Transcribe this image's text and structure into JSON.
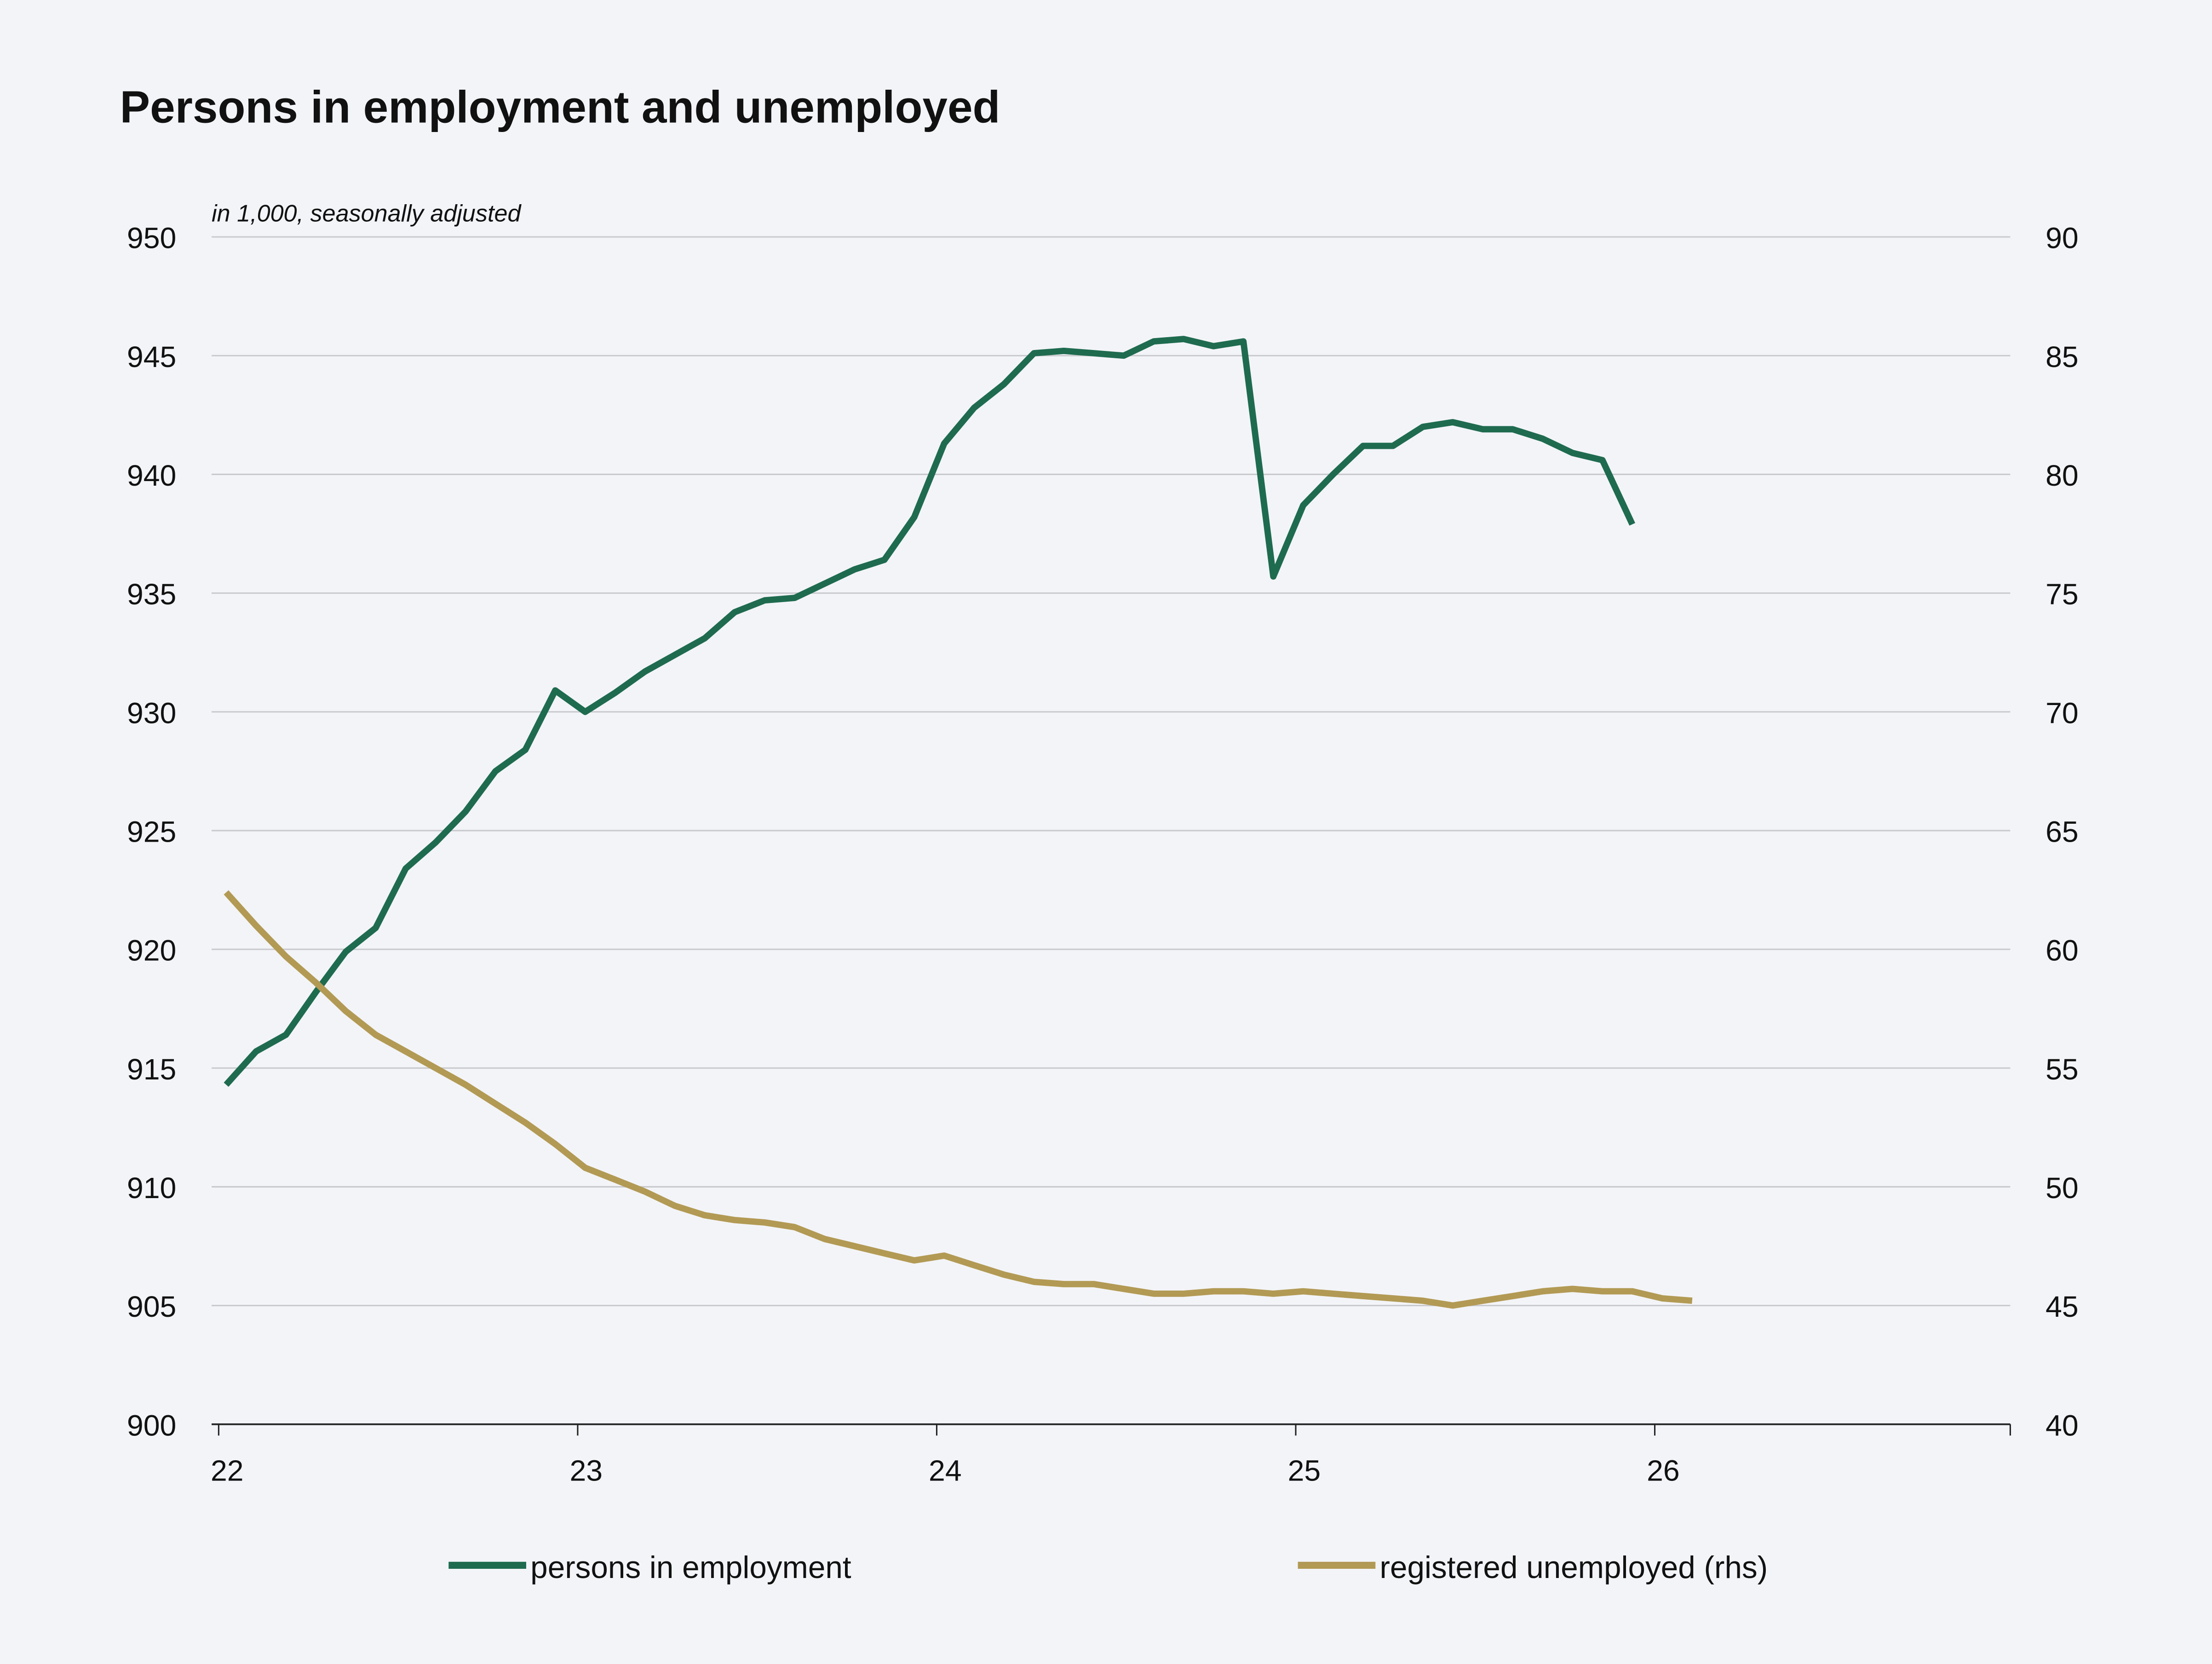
{
  "chart_data": {
    "type": "line",
    "title": "Persons in employment and unemployed",
    "subtitle": "in 1,000, seasonally adjusted",
    "x_tick_labels": [
      "22",
      "23",
      "24",
      "25",
      "26"
    ],
    "x_range": [
      "2022-01",
      "2026-12"
    ],
    "y_left": {
      "range": [
        900,
        950
      ],
      "ticks": [
        "900",
        "905",
        "910",
        "915",
        "920",
        "925",
        "930",
        "935",
        "940",
        "945",
        "950"
      ]
    },
    "y_right": {
      "range": [
        40,
        90
      ],
      "ticks": [
        "40",
        "45",
        "50",
        "55",
        "60",
        "65",
        "70",
        "75",
        "80",
        "85",
        "90"
      ]
    },
    "grid": true,
    "legend_position": "bottom",
    "start_month": "2022-01",
    "series": [
      {
        "name": "persons in employment",
        "axis": "left",
        "color": "#1f6b4f",
        "values": [
          914.3,
          915.7,
          916.4,
          918.2,
          919.9,
          920.9,
          923.4,
          924.5,
          925.8,
          927.5,
          928.4,
          930.9,
          930.0,
          930.8,
          931.7,
          932.4,
          933.1,
          934.2,
          934.7,
          934.8,
          935.4,
          936.0,
          936.4,
          938.2,
          941.3,
          942.8,
          943.8,
          945.1,
          945.2,
          945.1,
          945.0,
          945.6,
          945.7,
          945.4,
          945.6,
          935.7,
          938.7,
          940.0,
          941.2,
          941.2,
          942.0,
          942.2,
          941.9,
          941.9,
          941.5,
          940.9,
          940.6,
          937.9
        ]
      },
      {
        "name": "registered unemployed (rhs)",
        "axis": "right",
        "color": "#b29a55",
        "values": [
          62.4,
          61.0,
          59.7,
          58.6,
          57.4,
          56.4,
          55.7,
          55.0,
          54.3,
          53.5,
          52.7,
          51.8,
          50.8,
          50.3,
          49.8,
          49.2,
          48.8,
          48.6,
          48.5,
          48.3,
          47.8,
          47.5,
          47.2,
          46.9,
          47.1,
          46.7,
          46.3,
          46.0,
          45.9,
          45.9,
          45.7,
          45.5,
          45.5,
          45.6,
          45.6,
          45.5,
          45.6,
          45.5,
          45.4,
          45.3,
          45.2,
          45.0,
          45.2,
          45.4,
          45.6,
          45.7,
          45.6,
          45.6,
          45.3,
          45.2
        ]
      }
    ]
  }
}
